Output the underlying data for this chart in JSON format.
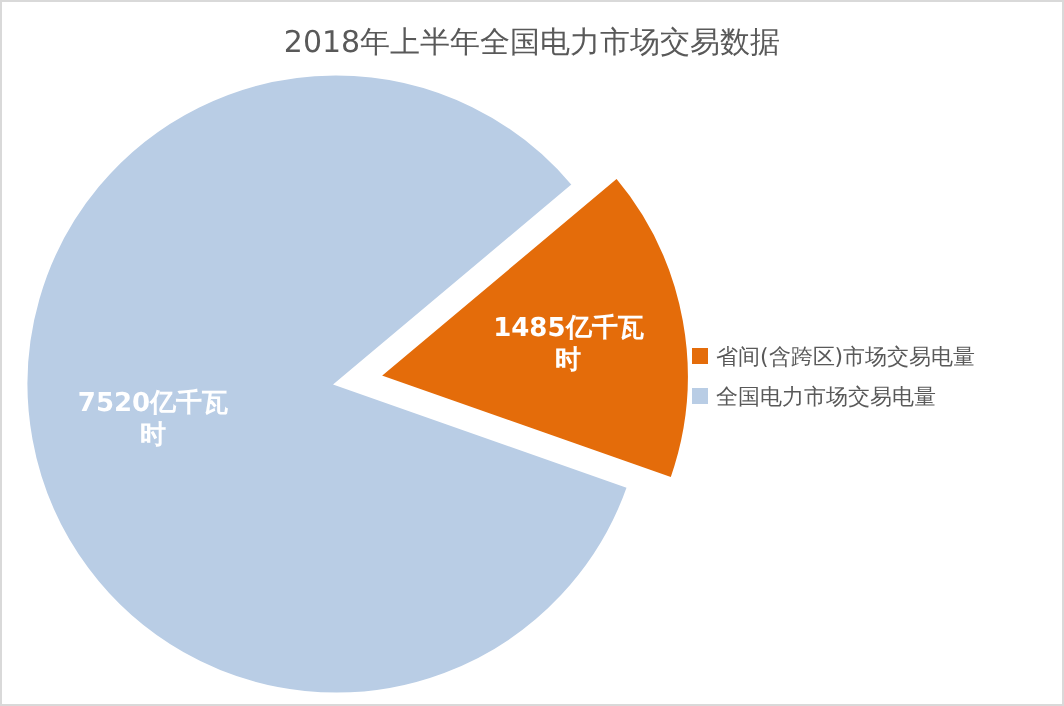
{
  "chart_data": {
    "type": "pie",
    "title": "2018年上半年全国电力市场交易数据",
    "categories": [
      "省间(含跨区)市场交易电量",
      "全国电力市场交易电量"
    ],
    "values": [
      1485,
      7520
    ],
    "colors": [
      "#e46c0a",
      "#b9cde5"
    ],
    "value_labels": [
      "1485亿千瓦时",
      "7520亿千瓦时"
    ],
    "legend": "right"
  }
}
